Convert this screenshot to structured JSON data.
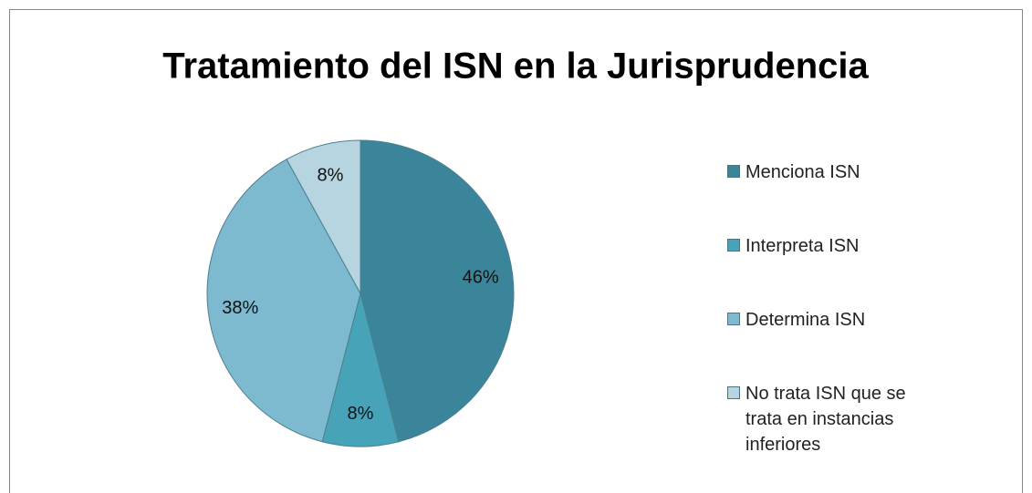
{
  "chart_data": {
    "type": "pie",
    "title": "Tratamiento del ISN en la Jurisprudencia",
    "categories": [
      "Menciona ISN",
      "Interpreta ISN",
      "Determina ISN",
      "No trata ISN que se trata en instancias inferiores"
    ],
    "values": [
      46,
      8,
      38,
      8
    ],
    "value_labels": [
      "46%",
      "8%",
      "38%",
      "8%"
    ],
    "colors": [
      "#3a8599",
      "#47a3b8",
      "#7db9cf",
      "#b6d5e0"
    ],
    "legend": "right"
  }
}
